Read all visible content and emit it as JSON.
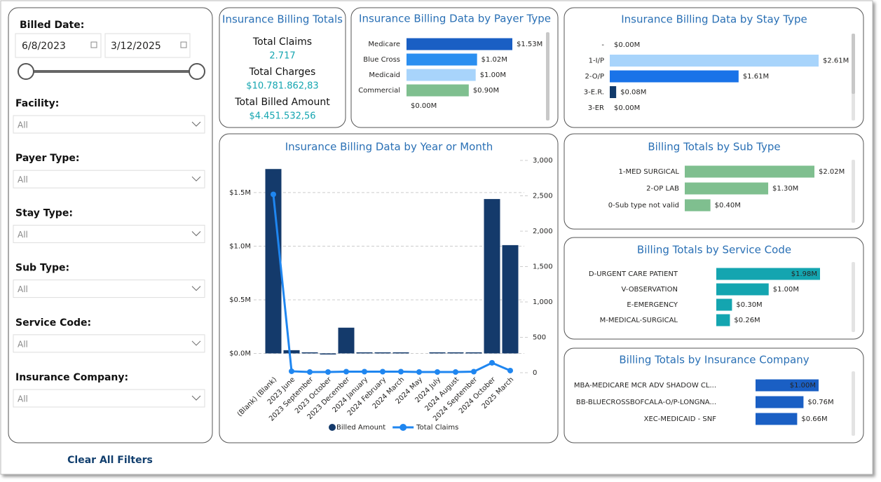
{
  "filters": {
    "billed_date": {
      "label": "Billed Date:",
      "start": "6/8/2023",
      "end": "3/12/2025"
    },
    "dropdowns": [
      {
        "label": "Facility:",
        "value": "All"
      },
      {
        "label": "Payer Type:",
        "value": "All"
      },
      {
        "label": "Stay Type:",
        "value": "All"
      },
      {
        "label": "Sub Type:",
        "value": "All"
      },
      {
        "label": "Service Code:",
        "value": "All"
      },
      {
        "label": "Insurance Company:",
        "value": "All"
      }
    ],
    "clear_button": "Clear All Filters"
  },
  "kpis": {
    "title": "Insurance Billing Totals",
    "items": [
      {
        "label": "Total Claims",
        "value": "2.717"
      },
      {
        "label": "Total Charges",
        "value": "$10.781.862,83"
      },
      {
        "label": "Total Billed Amount",
        "value": "$4.451.532,56"
      }
    ]
  },
  "chart_data": [
    {
      "type": "bar",
      "horizontal": true,
      "title": "Insurance Billing Data by Payer Type",
      "categories": [
        "Medicare",
        "Blue Cross",
        "Medicaid",
        "Commercial",
        null
      ],
      "values": [
        1.53,
        1.02,
        1.0,
        0.9,
        0
      ],
      "value_labels": [
        "$1.53M",
        "$1.02M",
        "$1.00M",
        "$0.90M",
        "$0.00M"
      ],
      "colors": [
        "#1a5fc4",
        "#2b8ff0",
        "#a8d4fb",
        "#7fbf8f",
        "#1a5fc4"
      ]
    },
    {
      "type": "bar",
      "horizontal": true,
      "title": "Insurance Billing Data by Stay Type",
      "categories": [
        "-",
        "1-I/P",
        "2-O/P",
        "3-E.R.",
        "3-ER"
      ],
      "values": [
        0,
        2.61,
        1.61,
        0.08,
        0
      ],
      "value_labels": [
        "$0.00M",
        "$2.61M",
        "$1.61M",
        "$0.08M",
        "$0.00M"
      ],
      "colors": [
        "#1a73e8",
        "#a8d4fb",
        "#1a73e8",
        "#113a6b",
        "#113a6b"
      ]
    },
    {
      "type": "combo",
      "title": "Insurance Billing Data by Year or Month",
      "categories": [
        "(Blank) (Blank)",
        "2023 June",
        "2023 September",
        "2023 October",
        "2023 December",
        "2024 January",
        "2024 February",
        "2024 March",
        "2024 May",
        "2024 July",
        "2024 August",
        "2024 September",
        "2024 October",
        "2025 March"
      ],
      "series": [
        {
          "name": "Billed Amount",
          "color": "#143a6b",
          "values": [
            1.72,
            0.03,
            0.01,
            -0.01,
            0.24,
            0.01,
            0.01,
            0.01,
            0,
            0.01,
            0.01,
            0.01,
            1.44,
            1.01
          ]
        },
        {
          "name": "Total Claims",
          "color": "#1f86f0",
          "axis": "y2",
          "values": [
            2520,
            20,
            10,
            10,
            15,
            15,
            15,
            15,
            10,
            10,
            10,
            15,
            140,
            30
          ]
        }
      ],
      "ylim": [
        -0.18,
        1.8
      ],
      "yticks": [
        {
          "value": 0,
          "label": "$0.0M"
        },
        {
          "value": 0.5,
          "label": "$0.5M"
        },
        {
          "value": 1,
          "label": "$1.0M"
        },
        {
          "value": 1.5,
          "label": "$1.5M"
        }
      ],
      "y2lim": [
        0,
        3000
      ],
      "y2ticks": [
        0,
        500,
        {
          "value": 1000,
          "label": "1,000"
        },
        {
          "value": 1500,
          "label": "1,500"
        },
        {
          "value": 2000,
          "label": "2,000"
        },
        {
          "value": 2500,
          "label": "2,500"
        },
        {
          "value": 3000,
          "label": "3,000"
        }
      ],
      "grid": true
    },
    {
      "type": "bar",
      "horizontal": true,
      "title": "Billing Totals by Sub Type",
      "categories": [
        "1-MED SURGICAL",
        "2-OP LAB",
        "0-Sub type not valid"
      ],
      "values": [
        2.02,
        1.3,
        0.4
      ],
      "value_labels": [
        "$2.02M",
        "$1.30M",
        "$0.40M"
      ],
      "color": "#7fbf8f"
    },
    {
      "type": "bar",
      "horizontal": true,
      "title": "Billing Totals by Service Code",
      "categories": [
        "D-URGENT CARE PATIENT",
        "V-OBSERVATION",
        "E-EMERGENCY",
        "M-MEDICAL-SURGICAL"
      ],
      "values": [
        1.98,
        1.0,
        0.3,
        0.26
      ],
      "value_labels": [
        "$1.98M",
        "$1.00M",
        "$0.30M",
        "$0.26M"
      ],
      "color": "#14a5b0"
    },
    {
      "type": "bar",
      "horizontal": true,
      "title": "Billing Totals by Insurance Company",
      "categories": [
        "MBA-MEDICARE MCR ADV SHADOW CL...",
        "BB-BLUECROSSBOFCALA-O/P-LONGNA...",
        "XEC-MEDICAID - SNF"
      ],
      "values": [
        1.0,
        0.76,
        0.66
      ],
      "value_labels": [
        "$1.00M",
        "$0.76M",
        "$0.66M"
      ],
      "color": "#1a5fc4"
    }
  ]
}
